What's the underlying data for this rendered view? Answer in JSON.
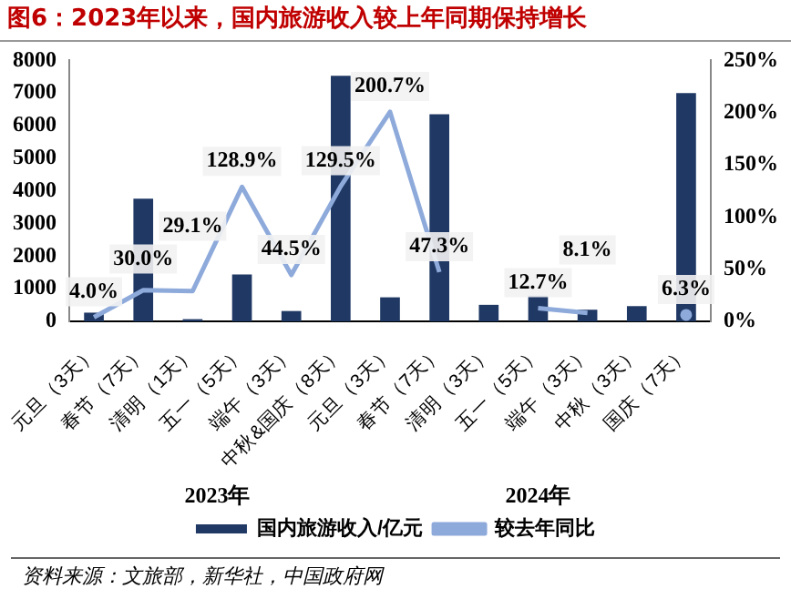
{
  "chart_data": {
    "type": "bar",
    "title": "图6：2023年以来，国内旅游收入较上年同期保持增长",
    "categories": [
      "元旦（3天）",
      "春节（7天）",
      "清明（1天）",
      "五一（5天）",
      "端午（3天）",
      "中秋&国庆（8天）",
      "元旦（3天）",
      "春节（7天）",
      "清明（3天）",
      "五一（5天）",
      "端午（3天）",
      "中秋（3天）",
      "国庆（7天）"
    ],
    "series": [
      {
        "name": "国内旅游收入/亿元",
        "color": "#1f3864",
        "values": [
          270,
          3760,
          70,
          1440,
          320,
          7530,
          740,
          6350,
          510,
          790,
          360,
          470,
          7000
        ]
      },
      {
        "name": "较去年同比",
        "type": "line",
        "axis": "y2",
        "color": "#8eaadb",
        "values": [
          4.0,
          30.0,
          29.1,
          128.9,
          44.5,
          129.5,
          200.7,
          47.3,
          null,
          12.7,
          8.1,
          null,
          6.3
        ],
        "value_labels": [
          "4.0%",
          "30.0%",
          "29.1%",
          "128.9%",
          "44.5%",
          "129.5%",
          "200.7%",
          "47.3%",
          null,
          "12.7%",
          "8.1%",
          null,
          "6.3%"
        ]
      }
    ],
    "ylim": [
      0,
      8000
    ],
    "yticks": [
      0,
      1000,
      2000,
      3000,
      4000,
      5000,
      6000,
      7000,
      8000
    ],
    "y2lim": [
      0,
      250
    ],
    "y2ticks": [
      {
        "value": 0,
        "label": "0%"
      },
      {
        "value": 50,
        "label": "50%"
      },
      {
        "value": 100,
        "label": "100%"
      },
      {
        "value": 150,
        "label": "150%"
      },
      {
        "value": 200,
        "label": "200%"
      },
      {
        "value": 250,
        "label": "250%"
      }
    ],
    "legend": "bottom",
    "annotations": [
      "2023年",
      "2024年",
      "资料来源：文旅部，新华社，中国政府网"
    ]
  }
}
